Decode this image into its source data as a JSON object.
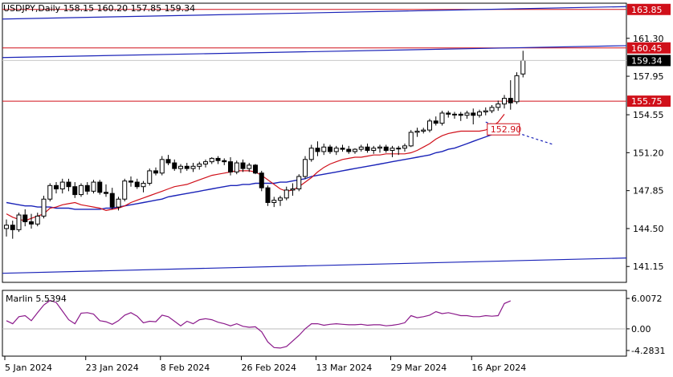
{
  "header": {
    "symbol_text": "USDJPY,Daily  158.15 160.20 157.85 159.34"
  },
  "colors": {
    "bull_fill": "#ffffff",
    "bear_fill": "#000000",
    "ma_fast": "#d0101a",
    "ma_slow": "#1a23b8",
    "level": "#d0101a",
    "channel": "#1a23b8",
    "marlin": "#8b1a8b",
    "current_price_bg": "#000000"
  },
  "chart_data": [
    {
      "type": "candlestick",
      "title": "USDJPY,Daily",
      "ohlc_header": {
        "open": 158.15,
        "high": 160.2,
        "low": 157.85,
        "close": 159.34
      },
      "y_ticks": [
        "161.30",
        "157.95",
        "154.55",
        "151.20",
        "147.85",
        "144.50",
        "141.15"
      ],
      "ylim": [
        139.75,
        164.4
      ],
      "x_tick_labels": [
        "5 Jan 2024",
        "23 Jan 2024",
        "8 Feb 2024",
        "26 Feb 2024",
        "13 Mar 2024",
        "29 Mar 2024",
        "16 Apr 2024"
      ],
      "x_tick_bar_index": [
        0,
        13,
        25,
        38,
        50,
        62,
        75
      ],
      "candles": [
        [
          144.5,
          145.3,
          143.8,
          144.8
        ],
        [
          144.8,
          145.2,
          143.6,
          144.4
        ],
        [
          144.4,
          145.9,
          144.2,
          145.7
        ],
        [
          145.7,
          146.2,
          144.7,
          145.1
        ],
        [
          145.1,
          145.8,
          144.5,
          144.9
        ],
        [
          144.9,
          145.9,
          144.7,
          145.6
        ],
        [
          145.6,
          147.4,
          145.4,
          147.1
        ],
        [
          147.1,
          148.5,
          146.9,
          148.3
        ],
        [
          148.3,
          148.6,
          147.6,
          148.0
        ],
        [
          148.0,
          148.9,
          147.6,
          148.6
        ],
        [
          148.6,
          148.9,
          147.8,
          148.2
        ],
        [
          148.2,
          148.6,
          147.2,
          147.5
        ],
        [
          147.5,
          148.5,
          147.3,
          148.3
        ],
        [
          148.3,
          148.6,
          147.5,
          147.8
        ],
        [
          147.8,
          148.8,
          147.6,
          148.6
        ],
        [
          148.6,
          148.8,
          147.5,
          147.7
        ],
        [
          147.7,
          148.4,
          147.3,
          147.6
        ],
        [
          147.6,
          148.1,
          146.2,
          146.4
        ],
        [
          146.4,
          147.3,
          146.1,
          147.1
        ],
        [
          147.1,
          148.9,
          146.9,
          148.7
        ],
        [
          148.7,
          149.1,
          148.2,
          148.6
        ],
        [
          148.6,
          148.9,
          148.0,
          148.2
        ],
        [
          148.2,
          148.7,
          147.7,
          148.5
        ],
        [
          148.5,
          149.8,
          148.3,
          149.6
        ],
        [
          149.6,
          149.9,
          149.2,
          149.4
        ],
        [
          149.4,
          150.9,
          149.2,
          150.6
        ],
        [
          150.6,
          151.0,
          150.1,
          150.3
        ],
        [
          150.3,
          150.6,
          149.6,
          149.8
        ],
        [
          149.8,
          150.2,
          149.4,
          150.0
        ],
        [
          150.0,
          150.3,
          149.6,
          149.8
        ],
        [
          149.8,
          150.3,
          149.5,
          150.0
        ],
        [
          150.0,
          150.4,
          149.7,
          150.2
        ],
        [
          150.2,
          150.6,
          149.9,
          150.4
        ],
        [
          150.4,
          150.8,
          150.2,
          150.7
        ],
        [
          150.7,
          150.9,
          150.2,
          150.5
        ],
        [
          150.5,
          150.7,
          150.1,
          150.4
        ],
        [
          150.4,
          150.8,
          149.2,
          149.5
        ],
        [
          149.5,
          150.5,
          149.3,
          150.3
        ],
        [
          150.3,
          150.6,
          149.5,
          149.8
        ],
        [
          149.8,
          150.3,
          149.5,
          150.1
        ],
        [
          150.1,
          150.2,
          149.3,
          149.4
        ],
        [
          149.4,
          149.6,
          147.8,
          148.1
        ],
        [
          148.1,
          148.3,
          146.5,
          146.8
        ],
        [
          146.8,
          147.3,
          146.4,
          147.0
        ],
        [
          147.0,
          147.4,
          146.5,
          147.2
        ],
        [
          147.2,
          148.2,
          147.0,
          147.9
        ],
        [
          147.9,
          148.5,
          147.4,
          148.0
        ],
        [
          148.0,
          149.3,
          147.8,
          149.1
        ],
        [
          149.1,
          150.9,
          148.9,
          150.6
        ],
        [
          150.6,
          151.9,
          150.4,
          151.6
        ],
        [
          151.6,
          152.2,
          150.9,
          151.3
        ],
        [
          151.3,
          152.0,
          151.0,
          151.7
        ],
        [
          151.7,
          151.9,
          151.1,
          151.3
        ],
        [
          151.3,
          151.8,
          151.0,
          151.6
        ],
        [
          151.6,
          151.9,
          151.3,
          151.5
        ],
        [
          151.5,
          151.8,
          151.1,
          151.3
        ],
        [
          151.3,
          151.6,
          151.1,
          151.5
        ],
        [
          151.5,
          151.9,
          151.3,
          151.7
        ],
        [
          151.7,
          152.0,
          151.2,
          151.4
        ],
        [
          151.4,
          151.8,
          151.1,
          151.6
        ],
        [
          151.6,
          151.9,
          151.2,
          151.7
        ],
        [
          151.7,
          151.9,
          151.2,
          151.4
        ],
        [
          151.4,
          151.8,
          150.8,
          151.6
        ],
        [
          151.6,
          151.8,
          151.0,
          151.6
        ],
        [
          151.6,
          152.0,
          151.3,
          151.8
        ],
        [
          151.8,
          153.2,
          151.7,
          153.0
        ],
        [
          153.0,
          153.4,
          152.6,
          153.1
        ],
        [
          153.1,
          153.4,
          152.9,
          153.2
        ],
        [
          153.2,
          154.2,
          153.0,
          154.0
        ],
        [
          154.0,
          154.4,
          153.6,
          153.8
        ],
        [
          153.8,
          154.9,
          153.6,
          154.7
        ],
        [
          154.7,
          154.9,
          154.3,
          154.6
        ],
        [
          154.6,
          154.8,
          154.2,
          154.6
        ],
        [
          154.6,
          154.8,
          154.0,
          154.5
        ],
        [
          154.5,
          154.9,
          154.2,
          154.7
        ],
        [
          154.7,
          155.1,
          153.7,
          154.5
        ],
        [
          154.5,
          155.0,
          154.3,
          154.8
        ],
        [
          154.8,
          155.2,
          154.5,
          154.9
        ],
        [
          154.9,
          155.4,
          154.7,
          155.2
        ],
        [
          155.2,
          155.8,
          154.9,
          155.5
        ],
        [
          155.5,
          156.3,
          155.1,
          156.0
        ],
        [
          156.0,
          157.6,
          155.0,
          155.6
        ],
        [
          155.7,
          158.3,
          155.5,
          158.0
        ],
        [
          158.15,
          160.2,
          157.85,
          159.34
        ]
      ],
      "ma_fast_values": [
        145.8,
        145.5,
        145.3,
        145.2,
        145.4,
        145.6,
        145.8,
        146.3,
        146.4,
        146.6,
        146.7,
        146.8,
        146.6,
        146.5,
        146.4,
        146.3,
        146.1,
        146.2,
        146.3,
        146.5,
        146.8,
        147.0,
        147.2,
        147.4,
        147.6,
        147.8,
        148.0,
        148.2,
        148.3,
        148.4,
        148.6,
        148.8,
        149.0,
        149.2,
        149.3,
        149.4,
        149.5,
        149.6,
        149.6,
        149.6,
        149.5,
        149.2,
        148.8,
        148.4,
        148.0,
        147.8,
        147.9,
        148.2,
        148.6,
        149.0,
        149.5,
        149.9,
        150.2,
        150.4,
        150.6,
        150.7,
        150.8,
        150.8,
        150.9,
        151.0,
        151.0,
        151.1,
        151.1,
        151.1,
        151.1,
        151.2,
        151.4,
        151.7,
        152.0,
        152.4,
        152.7,
        152.9,
        153.0,
        153.1,
        153.1,
        153.1,
        153.1,
        153.2,
        153.5,
        153.9,
        154.6
      ],
      "ma_slow_values": [
        146.8,
        146.7,
        146.6,
        146.5,
        146.5,
        146.4,
        146.4,
        146.4,
        146.3,
        146.3,
        146.3,
        146.2,
        146.2,
        146.2,
        146.2,
        146.2,
        146.3,
        146.3,
        146.4,
        146.5,
        146.6,
        146.7,
        146.8,
        146.9,
        147.0,
        147.1,
        147.3,
        147.4,
        147.5,
        147.6,
        147.7,
        147.8,
        147.9,
        148.0,
        148.1,
        148.2,
        148.3,
        148.3,
        148.4,
        148.4,
        148.5,
        148.5,
        148.5,
        148.5,
        148.6,
        148.6,
        148.7,
        148.8,
        148.9,
        149.1,
        149.2,
        149.3,
        149.4,
        149.5,
        149.6,
        149.7,
        149.8,
        149.9,
        150.0,
        150.1,
        150.2,
        150.3,
        150.4,
        150.5,
        150.6,
        150.7,
        150.8,
        150.9,
        151.0,
        151.2,
        151.3,
        151.5,
        151.6,
        151.8,
        152.0,
        152.2,
        152.4,
        152.6,
        152.8,
        153.0,
        153.3
      ],
      "forecast_points": [
        [
          77,
          153.9
        ],
        [
          84,
          152.6
        ],
        [
          88,
          151.9
        ]
      ],
      "forecast_label": "152.90",
      "levels": [
        {
          "value": 163.85,
          "label": "163.85",
          "color": "red"
        },
        {
          "value": 160.45,
          "label": "160.45",
          "color": "red"
        },
        {
          "value": 155.75,
          "label": "155.75",
          "color": "red"
        }
      ],
      "channel_lines": [
        {
          "from": [
            0,
            163.0
          ],
          "to": [
            93,
            164.1
          ]
        },
        {
          "from": [
            0,
            159.6
          ],
          "to": [
            93,
            160.65
          ]
        },
        {
          "from": [
            0,
            140.55
          ],
          "to": [
            93,
            141.9
          ]
        }
      ],
      "current_price_label": "159.34"
    },
    {
      "type": "line",
      "indicator_label": "Marlin 5.5394",
      "y_ticks": [
        "6.0072",
        "0.00",
        "-4.2831"
      ],
      "ylim": [
        -5.4,
        7.6
      ],
      "values": [
        1.6,
        1.0,
        2.4,
        2.6,
        1.6,
        3.2,
        4.7,
        5.6,
        5.2,
        3.5,
        1.8,
        1.0,
        3.1,
        3.2,
        2.9,
        1.6,
        1.4,
        0.9,
        1.6,
        2.7,
        3.2,
        2.5,
        1.2,
        1.5,
        1.4,
        2.7,
        2.4,
        1.5,
        0.6,
        1.5,
        1.0,
        1.8,
        2.0,
        1.8,
        1.3,
        1.0,
        0.6,
        1.0,
        0.5,
        0.3,
        0.4,
        -0.6,
        -2.6,
        -3.7,
        -3.8,
        -3.5,
        -2.4,
        -1.3,
        0.0,
        1.0,
        1.0,
        0.7,
        0.9,
        1.0,
        0.9,
        0.8,
        0.8,
        0.9,
        0.7,
        0.8,
        0.8,
        0.6,
        0.7,
        0.9,
        1.2,
        2.6,
        2.2,
        2.4,
        2.7,
        3.4,
        3.0,
        3.2,
        2.9,
        2.6,
        2.6,
        2.4,
        2.4,
        2.6,
        2.5,
        2.6,
        5.0,
        5.5394
      ]
    }
  ]
}
